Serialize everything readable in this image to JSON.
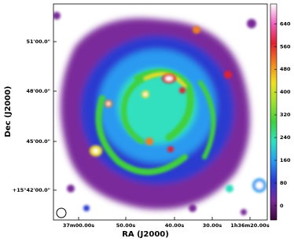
{
  "chart_data": {
    "type": "image",
    "xlabel": "RA (J2000)",
    "ylabel": "Dec (J2000)",
    "xtick_labels": [
      "37m00.00s",
      "50.00s",
      "40.00s",
      "30.00s",
      "1h36m20.00s"
    ],
    "ytick_labels": [
      "51'00.0\"",
      "48'00.0\"",
      "45'00.0\"",
      "+15°42'00.0\""
    ],
    "colorbar": {
      "lim": [
        -50,
        710
      ],
      "ticks": [
        0,
        80,
        160,
        240,
        320,
        400,
        480,
        560,
        640
      ]
    },
    "colormap": [
      "#3a0a3a",
      "#7a2a9a",
      "#2a3ad0",
      "#2a9af0",
      "#30e0c0",
      "#40d040",
      "#a0e030",
      "#f0e020",
      "#f08020",
      "#e02030",
      "#f060c0",
      "#ffffff"
    ]
  }
}
